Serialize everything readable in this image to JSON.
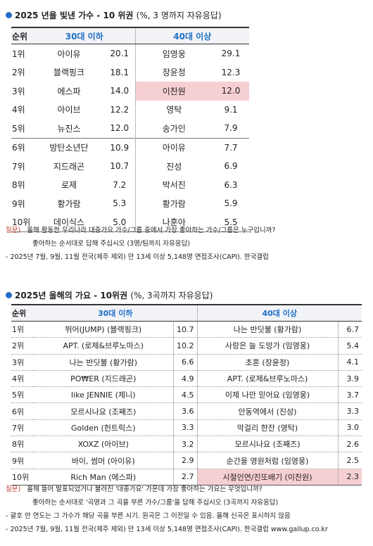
{
  "section1": {
    "title": "2025 년을 빛낸 가수 - 10 위권",
    "subtitle": "(%, 3 명까지 자유응답)",
    "headers": {
      "rank": "순위",
      "under30": "30대 이하",
      "over40": "40대 이상"
    },
    "rows": [
      {
        "rank": "1위",
        "a_name": "아이유",
        "a_val": "20.1",
        "b_name": "임영웅",
        "b_val": "29.1"
      },
      {
        "rank": "2위",
        "a_name": "블랙핑크",
        "a_val": "18.1",
        "b_name": "장윤정",
        "b_val": "12.3"
      },
      {
        "rank": "3위",
        "a_name": "에스파",
        "a_val": "14.0",
        "b_name": "이찬원",
        "b_val": "12.0"
      },
      {
        "rank": "4위",
        "a_name": "아이브",
        "a_val": "12.2",
        "b_name": "영탁",
        "b_val": "9.1"
      },
      {
        "rank": "5위",
        "a_name": "뉴진스",
        "a_val": "12.0",
        "b_name": "송가인",
        "b_val": "7.9"
      },
      {
        "rank": "6위",
        "a_name": "방탄소년단",
        "a_val": "10.9",
        "b_name": "아이유",
        "b_val": "7.7"
      },
      {
        "rank": "7위",
        "a_name": "지드래곤",
        "a_val": "10.7",
        "b_name": "진성",
        "b_val": "6.9"
      },
      {
        "rank": "8위",
        "a_name": "로제",
        "a_val": "7.2",
        "b_name": "박서진",
        "b_val": "6.3"
      },
      {
        "rank": "9위",
        "a_name": "황가람",
        "a_val": "5.3",
        "b_name": "황가람",
        "b_val": "5.9"
      },
      {
        "rank": "10위",
        "a_name": "데이식스",
        "a_val": "5.0",
        "b_name": "나훈아",
        "b_val": "5.5"
      }
    ],
    "note_label": "질문)",
    "note_line1": "올해 활동한 우리나라 대중가요 가수/그룹 중에서 가장 좋아하는 가수/그룹은 누구입니까?",
    "note_line2": "좋아하는 순서대로 답해 주십시오 (3명/팀까지 자유응답)",
    "note_line3": "- 2025년 7월, 9월, 11월 전국(제주 제외) 만 13세 이상 5,148명 면접조사(CAPI). 한국갤럽"
  },
  "section2": {
    "title": "2025년 올해의 가요 - 10위권",
    "subtitle": "(%, 3곡까지 자유응답)",
    "headers": {
      "rank": "순위",
      "under30": "30대 이하",
      "over40": "40대 이상"
    },
    "rows": [
      {
        "rank": "1위",
        "a_name": "뛰어(JUMP) (블랙핑크)",
        "a_val": "10.7",
        "b_name": "나는 반딧불 (황가람)",
        "b_val": "6.7"
      },
      {
        "rank": "2위",
        "a_name": "APT. (로제&브루노마스)",
        "a_val": "10.2",
        "b_name": "사랑은 늘 도망가 (임영웅)",
        "b_val": "5.4"
      },
      {
        "rank": "3위",
        "a_name": "나는 반딧불 (황가람)",
        "a_val": "6.6",
        "b_name": "초혼 (장윤정)",
        "b_val": "4.1"
      },
      {
        "rank": "4위",
        "a_name": "PO₩ER (지드래곤)",
        "a_val": "4.9",
        "b_name": "APT. (로제&브루노마스)",
        "b_val": "3.9"
      },
      {
        "rank": "5위",
        "a_name": "like JENNIE (제니)",
        "a_val": "4.5",
        "b_name": "이제 나만 믿어요 (임영웅)",
        "b_val": "3.7"
      },
      {
        "rank": "6위",
        "a_name": "모르시나요 (조째즈)",
        "a_val": "3.6",
        "b_name": "안동역에서 (진성)",
        "b_val": "3.3"
      },
      {
        "rank": "7위",
        "a_name": "Golden (헌트릭스)",
        "a_val": "3.3",
        "b_name": "막걸리 한잔 (영탁)",
        "b_val": "3.0"
      },
      {
        "rank": "8위",
        "a_name": "XOXZ (아이브)",
        "a_val": "3.2",
        "b_name": "모르시나요 (조째즈)",
        "b_val": "2.6"
      },
      {
        "rank": "9위",
        "a_name": "바이, 썸머 (아이유)",
        "a_val": "2.9",
        "b_name": "순간을 영원처럼 (임영웅)",
        "b_val": "2.5"
      },
      {
        "rank": "10위",
        "a_name": "Rich Man (에스파)",
        "a_val": "2.7",
        "b_name": "시절인연/진또배기 (이찬원)",
        "b_val": "2.3"
      }
    ],
    "note_label": "질문)",
    "note_line1": "올해 들어 발표되었거나 불려진 '대중가요' 가운데 가장 좋아하는 가요는 무엇입니까?",
    "note_line2": "좋아하는 순서대로 '곡명과 그 곡을 부른 가수/그룹'을 답해 주십시오 (3곡까지 자유응답)",
    "note_line3": "- 괄호 안 연도는 그 가수가 해당 곡을 부른 시기. 원곡은 그 이전일 수 있음. 올해 신곡은 표시하지 않음",
    "note_line4": "- 2025년 7월, 9월, 11월 전국(제주 제외) 만 13세 이상 5,148명 면접조사(CAPI). 한국갤럽 www.gallup.co.kr"
  },
  "colors": {
    "accent": "#1f6fc6",
    "highlight": "#f6cfd2",
    "question": "#c0392b"
  }
}
